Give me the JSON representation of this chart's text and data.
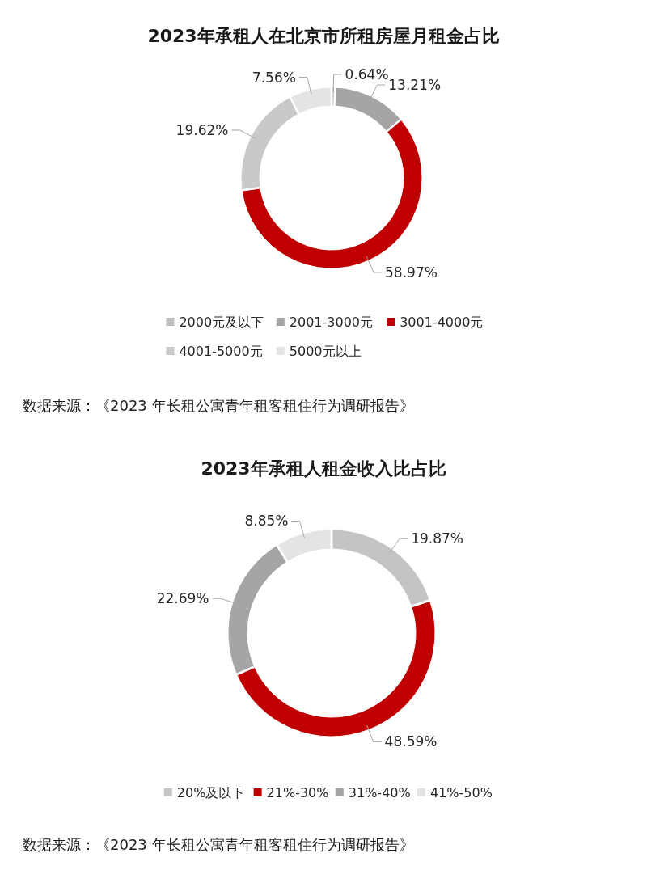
{
  "chart_data": [
    {
      "type": "donut",
      "title": "2023年承租人在北京市所租房屋月租金占比",
      "categories": [
        "2000元及以下",
        "2001-3000元",
        "3001-4000元",
        "4001-5000元",
        "5000元以上"
      ],
      "values": [
        0.64,
        13.21,
        58.97,
        19.62,
        7.56
      ],
      "colors": [
        "#bfbfbf",
        "#a5a5a5",
        "#c00000",
        "#c9c9c9",
        "#e4e4e4"
      ],
      "value_labels": [
        "0.64%",
        "13.21%",
        "58.97%",
        "19.62%",
        "7.56%"
      ],
      "legend": "bottom",
      "annotations": [
        "数据来源：《2023 年长租公寓青年租客租住行为调研报告》"
      ]
    },
    {
      "type": "donut",
      "title": "2023年承租人租金收入比占比",
      "categories": [
        "20%及以下",
        "21%-30%",
        "31%-40%",
        "41%-50%"
      ],
      "values": [
        19.87,
        48.59,
        22.69,
        8.85
      ],
      "colors": [
        "#c4c4c4",
        "#c00000",
        "#a5a5a5",
        "#e4e4e4"
      ],
      "value_labels": [
        "19.87%",
        "48.59%",
        "22.69%",
        "8.85%"
      ],
      "legend": "bottom",
      "annotations": [
        "数据来源：《2023 年长租公寓青年租客租住行为调研报告》"
      ]
    }
  ]
}
